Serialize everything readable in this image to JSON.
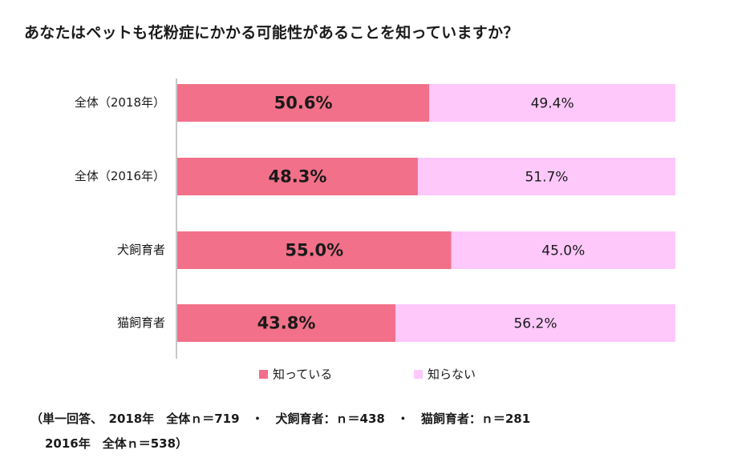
{
  "chart_data": {
    "type": "bar",
    "orientation": "horizontal",
    "stacked": true,
    "title": "あなたはペットも花粉症にかかる可能性があることを知っていますか？",
    "categories": [
      "全体（2018年）",
      "全体（2016年）",
      "犬飼育者",
      "猫飼育者"
    ],
    "series": [
      {
        "name": "知っている",
        "color": "#f27089",
        "values": [
          50.6,
          48.3,
          55.0,
          43.8
        ],
        "labels": [
          "50.6%",
          "48.3%",
          "55.0%",
          "43.8%"
        ]
      },
      {
        "name": "知らない",
        "color": "#fec8fb",
        "values": [
          49.4,
          51.7,
          45.0,
          56.2
        ],
        "labels": [
          "49.4%",
          "51.7%",
          "45.0%",
          "56.2%"
        ]
      }
    ],
    "xlim": [
      0,
      100
    ],
    "grid": false,
    "legend_position": "bottom"
  },
  "notes": {
    "line1": "（単一回答、　2018年　全体ｎ＝719　・　犬飼育者：ｎ＝438　・　猫飼育者：ｎ＝281",
    "line2": "2016年　全体ｎ＝538）"
  }
}
